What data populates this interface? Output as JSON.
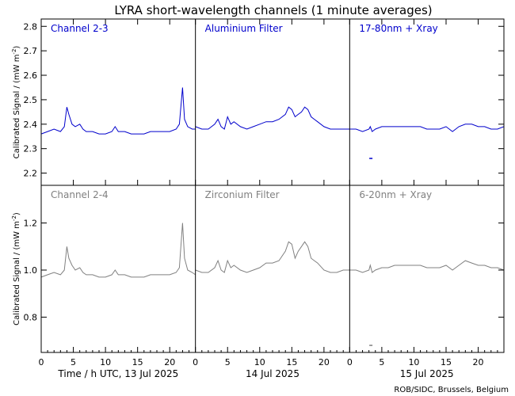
{
  "title": "LYRA short-wavelength channels (1 minute averages)",
  "credit": "ROB/SIDC, Brussels, Belgium",
  "colors": {
    "top": "#0000cc",
    "bottom": "#808080"
  },
  "chart_data": {
    "type": "line",
    "x_ticks": [
      0,
      5,
      10,
      15,
      20
    ],
    "x_range": [
      0,
      24
    ],
    "day_labels": [
      "Time / h UTC, 13 Jul 2025",
      "14 Jul 2025",
      "15 Jul 2025"
    ],
    "rows": [
      {
        "ylabel": "Calibrated Signal / (mW m",
        "ylabel_sup": "-2",
        "ylabel_end": ")",
        "ylim": [
          2.15,
          2.83
        ],
        "y_ticks": [
          2.2,
          2.3,
          2.4,
          2.5,
          2.6,
          2.7,
          2.8
        ],
        "y_tick_labels": [
          "2.2",
          "2.3",
          "2.4",
          "2.5",
          "2.6",
          "2.7",
          "2.8"
        ],
        "color": "#0000cc",
        "panels": [
          {
            "label": "Channel 2-3",
            "x": [
              0,
              1,
              2,
              3,
              3.6,
              4,
              4.3,
              4.8,
              5.3,
              6,
              6.5,
              7,
              8,
              9,
              10,
              11,
              11.5,
              12,
              13,
              14,
              15,
              16,
              17,
              18,
              19,
              20,
              21,
              21.5,
              22,
              22.3,
              22.8,
              23.5,
              24
            ],
            "y": [
              2.36,
              2.37,
              2.38,
              2.37,
              2.39,
              2.47,
              2.44,
              2.4,
              2.39,
              2.4,
              2.38,
              2.37,
              2.37,
              2.36,
              2.36,
              2.37,
              2.39,
              2.37,
              2.37,
              2.36,
              2.36,
              2.36,
              2.37,
              2.37,
              2.37,
              2.37,
              2.38,
              2.4,
              2.55,
              2.42,
              2.39,
              2.38,
              2.38
            ]
          },
          {
            "label": "Aluminium Filter",
            "x": [
              0,
              1,
              2,
              3,
              3.5,
              4,
              4.5,
              5,
              5.5,
              6,
              7,
              8,
              9,
              10,
              11,
              12,
              13,
              14,
              14.5,
              15,
              15.5,
              16,
              16.5,
              17,
              17.5,
              18,
              18.5,
              19,
              20,
              21,
              22,
              23,
              24
            ],
            "y": [
              2.39,
              2.38,
              2.38,
              2.4,
              2.42,
              2.39,
              2.38,
              2.43,
              2.4,
              2.41,
              2.39,
              2.38,
              2.39,
              2.4,
              2.41,
              2.41,
              2.42,
              2.44,
              2.47,
              2.46,
              2.43,
              2.44,
              2.45,
              2.47,
              2.46,
              2.43,
              2.42,
              2.41,
              2.39,
              2.38,
              2.38,
              2.38,
              2.38
            ]
          },
          {
            "label": "17-80nm + Xray",
            "x": [
              0,
              1,
              2,
              3,
              3.2,
              3.5,
              4,
              5,
              6,
              7,
              8,
              9,
              10,
              11,
              12,
              13,
              14,
              15,
              16,
              17,
              18,
              19,
              20,
              21,
              22,
              23,
              24
            ],
            "y": [
              2.38,
              2.38,
              2.37,
              2.38,
              2.39,
              2.37,
              2.38,
              2.39,
              2.39,
              2.39,
              2.39,
              2.39,
              2.39,
              2.39,
              2.38,
              2.38,
              2.38,
              2.39,
              2.37,
              2.39,
              2.4,
              2.4,
              2.39,
              2.39,
              2.38,
              2.38,
              2.39
            ]
          }
        ],
        "annotations": [
          {
            "panel": 2,
            "x": 3.3,
            "y": 2.26
          }
        ]
      },
      {
        "ylabel": "Calibrated Signal / (mW m",
        "ylabel_sup": "-2",
        "ylabel_end": ")",
        "ylim": [
          0.65,
          1.36
        ],
        "y_ticks": [
          0.8,
          1.0,
          1.2
        ],
        "y_tick_labels": [
          "0.8",
          "1.0",
          "1.2"
        ],
        "color": "#808080",
        "panels": [
          {
            "label": "Channel 2-4",
            "x": [
              0,
              1,
              2,
              3,
              3.6,
              4,
              4.3,
              4.8,
              5.3,
              6,
              6.5,
              7,
              8,
              9,
              10,
              11,
              11.5,
              12,
              13,
              14,
              15,
              16,
              17,
              18,
              19,
              20,
              21,
              21.5,
              22,
              22.3,
              22.8,
              23.5,
              24
            ],
            "y": [
              0.97,
              0.98,
              0.99,
              0.98,
              1.0,
              1.1,
              1.05,
              1.02,
              1.0,
              1.01,
              0.99,
              0.98,
              0.98,
              0.97,
              0.97,
              0.98,
              1.0,
              0.98,
              0.98,
              0.97,
              0.97,
              0.97,
              0.98,
              0.98,
              0.98,
              0.98,
              0.99,
              1.01,
              1.2,
              1.05,
              1.0,
              0.99,
              0.98
            ]
          },
          {
            "label": "Zirconium Filter",
            "x": [
              0,
              1,
              2,
              3,
              3.5,
              4,
              4.5,
              5,
              5.5,
              6,
              7,
              8,
              9,
              10,
              11,
              12,
              13,
              14,
              14.5,
              15,
              15.5,
              16,
              16.5,
              17,
              17.5,
              18,
              18.5,
              19,
              20,
              21,
              22,
              23,
              24
            ],
            "y": [
              1.0,
              0.99,
              0.99,
              1.01,
              1.04,
              1.0,
              0.99,
              1.04,
              1.01,
              1.02,
              1.0,
              0.99,
              1.0,
              1.01,
              1.03,
              1.03,
              1.04,
              1.08,
              1.12,
              1.11,
              1.05,
              1.08,
              1.1,
              1.12,
              1.1,
              1.05,
              1.04,
              1.03,
              1.0,
              0.99,
              0.99,
              1.0,
              1.0
            ]
          },
          {
            "label": "6-20nm + Xray",
            "x": [
              0,
              1,
              2,
              3,
              3.2,
              3.5,
              4,
              5,
              6,
              7,
              8,
              9,
              10,
              11,
              12,
              13,
              14,
              15,
              16,
              17,
              18,
              19,
              20,
              21,
              22,
              23,
              24
            ],
            "y": [
              1.0,
              1.0,
              0.99,
              1.0,
              1.02,
              0.99,
              1.0,
              1.01,
              1.01,
              1.02,
              1.02,
              1.02,
              1.02,
              1.02,
              1.01,
              1.01,
              1.01,
              1.02,
              1.0,
              1.02,
              1.04,
              1.03,
              1.02,
              1.02,
              1.01,
              1.01,
              1.0
            ]
          }
        ],
        "annotations": [
          {
            "panel": 2,
            "x": 3.3,
            "y": 0.68
          }
        ]
      }
    ]
  }
}
